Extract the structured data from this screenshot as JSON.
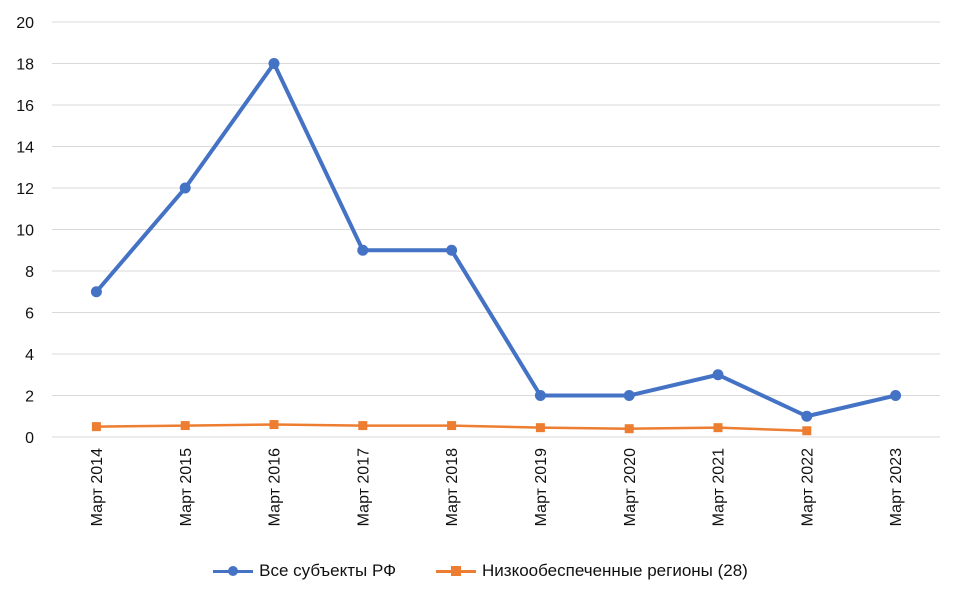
{
  "chart_data": {
    "type": "line",
    "categories": [
      "Март 2014",
      "Март 2015",
      "Март 2016",
      "Март 2017",
      "Март 2018",
      "Март 2019",
      "Март 2020",
      "Март 2021",
      "Март 2022",
      "Март 2023"
    ],
    "series": [
      {
        "name": "Все субъекты РФ",
        "color": "#4472C4",
        "marker": "circle",
        "values": [
          7,
          12,
          18,
          9,
          9,
          2,
          2,
          3,
          1,
          2
        ]
      },
      {
        "name": "Низкообеспеченные регионы (28)",
        "color": "#ED7D31",
        "marker": "square",
        "values": [
          0.5,
          0.55,
          0.6,
          0.55,
          0.55,
          0.45,
          0.4,
          0.45,
          0.3,
          null
        ]
      }
    ],
    "ylim": [
      0,
      20
    ],
    "yticks": [
      0,
      2,
      4,
      6,
      8,
      10,
      12,
      14,
      16,
      18,
      20
    ],
    "ytick_labels": [
      "0",
      "2",
      "4",
      "6",
      "8",
      "10",
      "12",
      "14",
      "16",
      "18",
      "20"
    ],
    "grid": true,
    "legend_position": "bottom",
    "title": "",
    "xlabel": "",
    "ylabel": ""
  }
}
